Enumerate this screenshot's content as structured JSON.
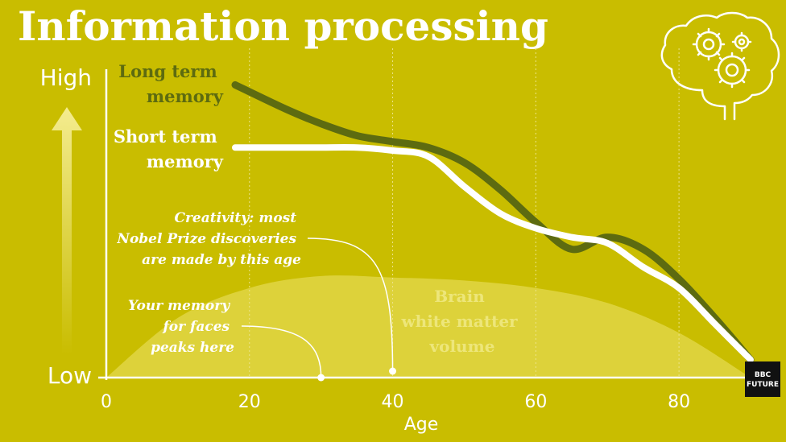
{
  "title": "Information processing",
  "y_high": "High",
  "y_low": "Low",
  "logo": {
    "line1": "BBC",
    "line2": "FUTURE"
  },
  "colors": {
    "background": "#c9bd00",
    "long_term": "#5d6b10",
    "short_term": "#ffffff",
    "white_matter": "#ddd23a",
    "text": "#ffffff"
  },
  "icons": [
    "brain-gears-icon",
    "up-arrow-icon"
  ],
  "chart_data": {
    "type": "line",
    "xlabel": "Age",
    "ylabel": "",
    "xlim": [
      0,
      90
    ],
    "x_ticks": [
      "0",
      "20",
      "40",
      "60",
      "80"
    ],
    "ylim": [
      0,
      1
    ],
    "grid": "vertical dotted lines",
    "series": [
      {
        "name_lines": [
          "Long term",
          "memory"
        ],
        "x": [
          18,
          25,
          30,
          35,
          40,
          45,
          50,
          55,
          60,
          65,
          70,
          75,
          80,
          85,
          90
        ],
        "y": [
          0.98,
          0.9,
          0.85,
          0.81,
          0.79,
          0.77,
          0.72,
          0.63,
          0.52,
          0.43,
          0.47,
          0.43,
          0.33,
          0.2,
          0.06
        ]
      },
      {
        "name_lines": [
          "Short term",
          "memory"
        ],
        "x": [
          18,
          25,
          30,
          35,
          40,
          45,
          50,
          55,
          60,
          65,
          70,
          75,
          80,
          85,
          90
        ],
        "y": [
          0.77,
          0.77,
          0.77,
          0.77,
          0.76,
          0.74,
          0.64,
          0.55,
          0.5,
          0.47,
          0.45,
          0.37,
          0.3,
          0.18,
          0.06
        ]
      },
      {
        "label_lines": [
          "Brain",
          "white matter",
          "volume"
        ],
        "x": [
          0,
          10,
          20,
          30,
          40,
          50,
          60,
          70,
          80,
          90
        ],
        "y": [
          0.0,
          0.2,
          0.3,
          0.34,
          0.335,
          0.325,
          0.3,
          0.25,
          0.15,
          0.0
        ]
      }
    ],
    "annotations": [
      {
        "lines": [
          "Creativity: most",
          "Nobel Prize discoveries",
          "are made by this age"
        ],
        "x": 40
      },
      {
        "lines": [
          "Your memory",
          "for faces",
          "peaks here"
        ],
        "x": 30
      }
    ]
  }
}
